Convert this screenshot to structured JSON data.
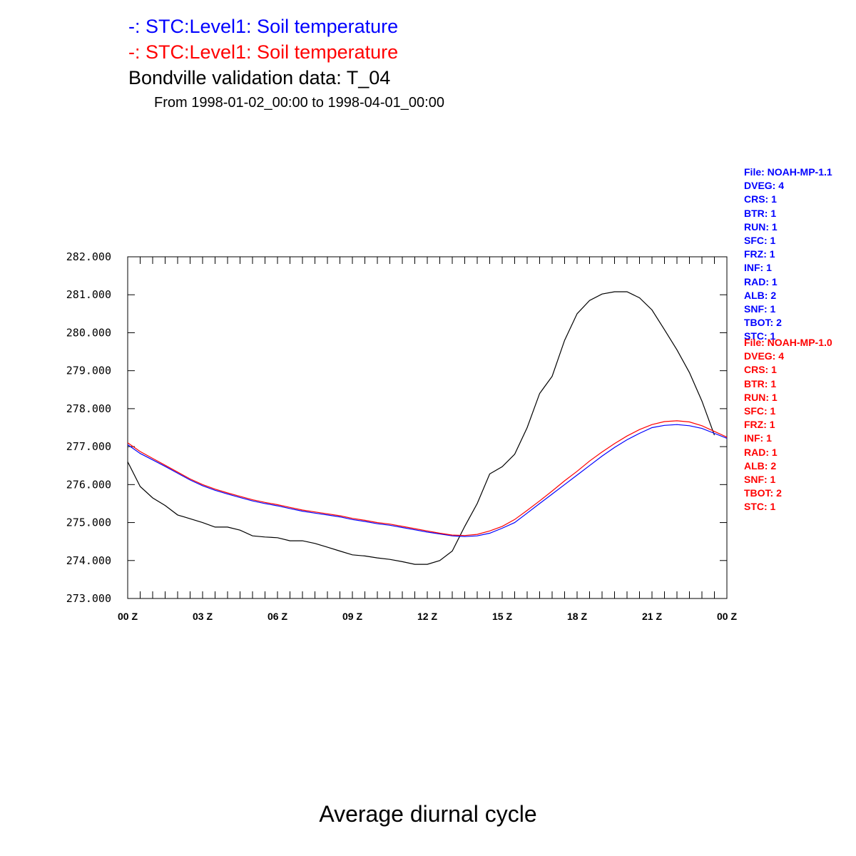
{
  "chart_data": {
    "type": "line",
    "title_lines": [
      {
        "text": "-: STC:Level1: Soil temperature",
        "color": "#0000ff"
      },
      {
        "text": "-: STC:Level1: Soil temperature",
        "color": "#ff0000"
      },
      {
        "text": "Bondville validation data: T_04",
        "color": "#000000"
      }
    ],
    "subtitle": "From 1998-01-02_00:00 to 1998-04-01_00:00",
    "footer": "Average diurnal cycle",
    "ylim": [
      273.0,
      282.0
    ],
    "y_ticks": [
      273,
      274,
      275,
      276,
      277,
      278,
      279,
      280,
      281,
      282
    ],
    "y_tick_labels": [
      "273.000",
      "274.000",
      "275.000",
      "276.000",
      "277.000",
      "278.000",
      "279.000",
      "280.000",
      "281.000",
      "282.000"
    ],
    "xlim": [
      0,
      24
    ],
    "x_ticks": [
      0,
      3,
      6,
      9,
      12,
      15,
      18,
      21,
      24
    ],
    "x_tick_labels": [
      "00 Z",
      "03 Z",
      "06 Z",
      "09 Z",
      "12 Z",
      "15 Z",
      "18 Z",
      "21 Z",
      "00 Z"
    ],
    "x_minor_step": 0.5,
    "grid": false,
    "series": [
      {
        "color": "#000000",
        "points": [
          [
            0,
            276.6
          ],
          [
            0.5,
            275.95
          ],
          [
            1,
            275.65
          ],
          [
            1.5,
            275.45
          ],
          [
            2,
            275.2
          ],
          [
            2.5,
            275.1
          ],
          [
            3,
            275.0
          ],
          [
            3.5,
            274.88
          ],
          [
            4,
            274.88
          ],
          [
            4.5,
            274.8
          ],
          [
            5,
            274.65
          ],
          [
            5.5,
            274.62
          ],
          [
            6,
            274.6
          ],
          [
            6.5,
            274.52
          ],
          [
            7,
            274.52
          ],
          [
            7.5,
            274.45
          ],
          [
            8,
            274.35
          ],
          [
            8.5,
            274.25
          ],
          [
            9,
            274.15
          ],
          [
            9.5,
            274.12
          ],
          [
            10,
            274.07
          ],
          [
            10.5,
            274.03
          ],
          [
            11,
            273.97
          ],
          [
            11.5,
            273.9
          ],
          [
            12,
            273.9
          ],
          [
            12.5,
            274.0
          ],
          [
            13,
            274.25
          ],
          [
            13.5,
            274.9
          ],
          [
            14,
            275.5
          ],
          [
            14.5,
            276.28
          ],
          [
            15,
            276.47
          ],
          [
            15.5,
            276.8
          ],
          [
            16,
            277.5
          ],
          [
            16.5,
            278.4
          ],
          [
            17,
            278.85
          ],
          [
            17.5,
            279.8
          ],
          [
            18,
            280.5
          ],
          [
            18.5,
            280.85
          ],
          [
            19,
            281.02
          ],
          [
            19.5,
            281.08
          ],
          [
            20,
            281.08
          ],
          [
            20.5,
            280.92
          ],
          [
            21,
            280.6
          ],
          [
            21.5,
            280.08
          ],
          [
            22,
            279.55
          ],
          [
            22.5,
            278.95
          ],
          [
            23,
            278.2
          ],
          [
            23.5,
            277.3
          ]
        ]
      },
      {
        "color": "#0000ff",
        "points": [
          [
            0,
            277.05
          ],
          [
            0.5,
            276.82
          ],
          [
            1,
            276.65
          ],
          [
            1.5,
            276.48
          ],
          [
            2,
            276.3
          ],
          [
            2.5,
            276.12
          ],
          [
            3,
            275.97
          ],
          [
            3.5,
            275.85
          ],
          [
            4,
            275.75
          ],
          [
            4.5,
            275.66
          ],
          [
            5,
            275.57
          ],
          [
            5.5,
            275.5
          ],
          [
            6,
            275.44
          ],
          [
            6.5,
            275.37
          ],
          [
            7,
            275.3
          ],
          [
            7.5,
            275.25
          ],
          [
            8,
            275.2
          ],
          [
            8.5,
            275.15
          ],
          [
            9,
            275.08
          ],
          [
            9.5,
            275.03
          ],
          [
            10,
            274.97
          ],
          [
            10.5,
            274.93
          ],
          [
            11,
            274.87
          ],
          [
            11.5,
            274.81
          ],
          [
            12,
            274.75
          ],
          [
            12.5,
            274.7
          ],
          [
            13,
            274.65
          ],
          [
            13.5,
            274.63
          ],
          [
            14,
            274.65
          ],
          [
            14.5,
            274.72
          ],
          [
            15,
            274.85
          ],
          [
            15.5,
            275.0
          ],
          [
            16,
            275.25
          ],
          [
            16.5,
            275.5
          ],
          [
            17,
            275.75
          ],
          [
            17.5,
            276.0
          ],
          [
            18,
            276.25
          ],
          [
            18.5,
            276.5
          ],
          [
            19,
            276.75
          ],
          [
            19.5,
            276.98
          ],
          [
            20,
            277.18
          ],
          [
            20.5,
            277.35
          ],
          [
            21,
            277.5
          ],
          [
            21.5,
            277.56
          ],
          [
            22,
            277.58
          ],
          [
            22.5,
            277.55
          ],
          [
            23,
            277.48
          ],
          [
            23.5,
            277.35
          ],
          [
            24,
            277.22
          ]
        ]
      },
      {
        "color": "#ff0000",
        "points": [
          [
            0,
            277.1
          ],
          [
            0.5,
            276.87
          ],
          [
            1,
            276.69
          ],
          [
            1.5,
            276.51
          ],
          [
            2,
            276.33
          ],
          [
            2.5,
            276.15
          ],
          [
            3,
            276.0
          ],
          [
            3.5,
            275.88
          ],
          [
            4,
            275.78
          ],
          [
            4.5,
            275.69
          ],
          [
            5,
            275.6
          ],
          [
            5.5,
            275.53
          ],
          [
            6,
            275.47
          ],
          [
            6.5,
            275.4
          ],
          [
            7,
            275.33
          ],
          [
            7.5,
            275.28
          ],
          [
            8,
            275.23
          ],
          [
            8.5,
            275.18
          ],
          [
            9,
            275.11
          ],
          [
            9.5,
            275.06
          ],
          [
            10,
            275.0
          ],
          [
            10.5,
            274.96
          ],
          [
            11,
            274.9
          ],
          [
            11.5,
            274.84
          ],
          [
            12,
            274.78
          ],
          [
            12.5,
            274.72
          ],
          [
            13,
            274.67
          ],
          [
            13.5,
            274.66
          ],
          [
            14,
            274.69
          ],
          [
            14.5,
            274.78
          ],
          [
            15,
            274.9
          ],
          [
            15.5,
            275.08
          ],
          [
            16,
            275.32
          ],
          [
            16.5,
            275.57
          ],
          [
            17,
            275.83
          ],
          [
            17.5,
            276.1
          ],
          [
            18,
            276.35
          ],
          [
            18.5,
            276.62
          ],
          [
            19,
            276.86
          ],
          [
            19.5,
            277.08
          ],
          [
            20,
            277.28
          ],
          [
            20.5,
            277.45
          ],
          [
            21,
            277.58
          ],
          [
            21.5,
            277.66
          ],
          [
            22,
            277.68
          ],
          [
            22.5,
            277.65
          ],
          [
            23,
            277.55
          ],
          [
            23.5,
            277.4
          ],
          [
            24,
            277.25
          ]
        ]
      }
    ]
  },
  "legend_blocks": [
    {
      "color": "#0000ff",
      "lines": [
        "File: NOAH-MP-1.1",
        "DVEG: 4",
        "CRS: 1",
        "BTR: 1",
        "RUN: 1",
        "SFC: 1",
        "FRZ: 1",
        "INF: 1",
        "RAD: 1",
        "ALB: 2",
        "SNF: 1",
        "TBOT: 2",
        "STC: 1"
      ]
    },
    {
      "color": "#ff0000",
      "lines": [
        "File: NOAH-MP-1.0",
        "DVEG: 4",
        "CRS: 1",
        "BTR: 1",
        "RUN: 1",
        "SFC: 1",
        "FRZ: 1",
        "INF: 1",
        "RAD: 1",
        "ALB: 2",
        "SNF: 1",
        "TBOT: 2",
        "STC: 1"
      ]
    }
  ]
}
